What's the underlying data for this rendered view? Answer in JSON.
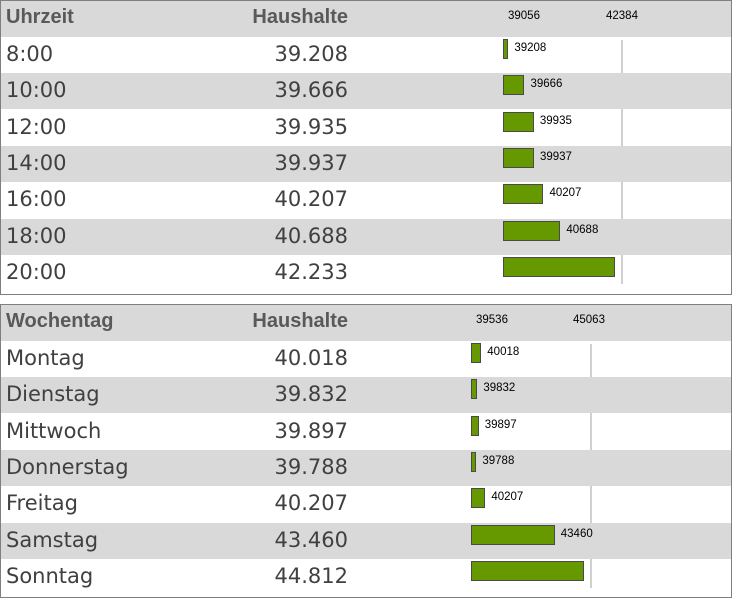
{
  "chart_data": [
    {
      "type": "table",
      "columns": [
        "Uhrzeit",
        "Haushalte"
      ],
      "scale_min_label": "39056",
      "scale_max_label": "42384",
      "scale": [
        39056,
        42384
      ],
      "rows": [
        {
          "label": "8:00",
          "value_text": "39.208",
          "value": 39208,
          "bar_label": "39208"
        },
        {
          "label": "10:00",
          "value_text": "39.666",
          "value": 39666,
          "bar_label": "39666"
        },
        {
          "label": "12:00",
          "value_text": "39.935",
          "value": 39935,
          "bar_label": "39935"
        },
        {
          "label": "14:00",
          "value_text": "39.937",
          "value": 39937,
          "bar_label": "39937"
        },
        {
          "label": "16:00",
          "value_text": "40.207",
          "value": 40207,
          "bar_label": "40207"
        },
        {
          "label": "18:00",
          "value_text": "40.688",
          "value": 40688,
          "bar_label": "40688"
        },
        {
          "label": "20:00",
          "value_text": "42.233",
          "value": 42233,
          "bar_label": ""
        }
      ]
    },
    {
      "type": "table",
      "columns": [
        "Wochentag",
        "Haushalte"
      ],
      "scale_min_label": "39536",
      "scale_max_label": "45063",
      "scale": [
        39536,
        45063
      ],
      "rows": [
        {
          "label": "Montag",
          "value_text": "40.018",
          "value": 40018,
          "bar_label": "40018"
        },
        {
          "label": "Dienstag",
          "value_text": "39.832",
          "value": 39832,
          "bar_label": "39832"
        },
        {
          "label": "Mittwoch",
          "value_text": "39.897",
          "value": 39897,
          "bar_label": "39897"
        },
        {
          "label": "Donnerstag",
          "value_text": "39.788",
          "value": 39788,
          "bar_label": "39788"
        },
        {
          "label": "Freitag",
          "value_text": "40.207",
          "value": 40207,
          "bar_label": "40207"
        },
        {
          "label": "Samstag",
          "value_text": "43.460",
          "value": 43460,
          "bar_label": "43460"
        },
        {
          "label": "Sonntag",
          "value_text": "44.812",
          "value": 44812,
          "bar_label": ""
        }
      ]
    }
  ],
  "colors": {
    "bar": "#669900",
    "header_bg": "#d9d9d9",
    "stripe": "#d9d9d9",
    "text": "#404040"
  }
}
